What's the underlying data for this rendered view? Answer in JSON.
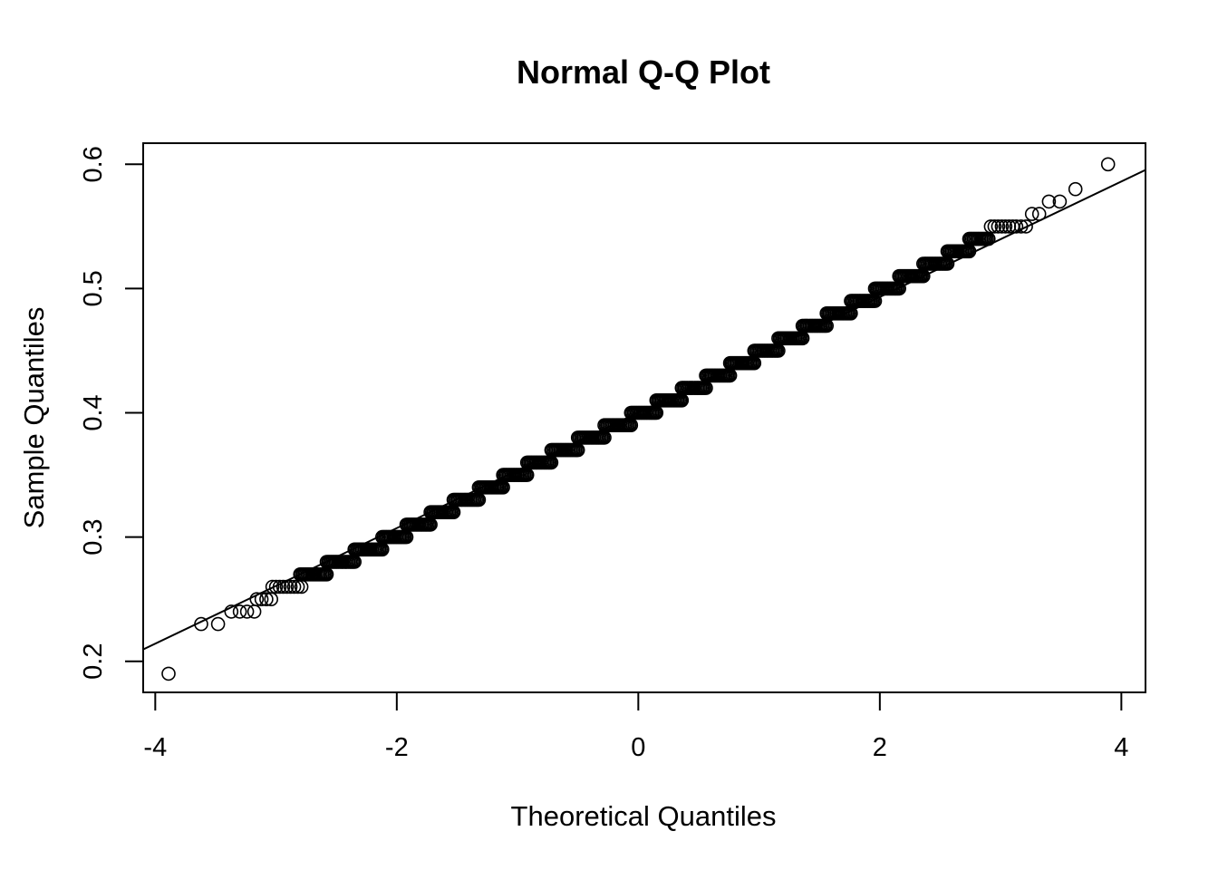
{
  "chart_data": {
    "type": "scatter",
    "title": "Normal Q-Q Plot",
    "xlabel": "Theoretical Quantiles",
    "ylabel": "Sample Quantiles",
    "xlim": [
      -4.1,
      4.2
    ],
    "ylim": [
      0.175,
      0.617
    ],
    "x_ticks": [
      -4,
      -2,
      0,
      2,
      4
    ],
    "x_tick_labels": [
      "-4",
      "-2",
      "0",
      "2",
      "4"
    ],
    "y_ticks": [
      0.2,
      0.3,
      0.4,
      0.5,
      0.6
    ],
    "y_tick_labels": [
      "0.2",
      "0.3",
      "0.4",
      "0.5",
      "0.6"
    ],
    "grid": false,
    "legend": "none",
    "marker": "open-circle",
    "reference_line": {
      "intercept": 0.4002,
      "slope": 0.0465
    },
    "low_tail_points": [
      [
        -3.89,
        0.19
      ],
      [
        -3.62,
        0.23
      ],
      [
        -3.48,
        0.23
      ],
      [
        -3.37,
        0.24
      ],
      [
        -3.3,
        0.24
      ],
      [
        -3.24,
        0.24
      ],
      [
        -3.18,
        0.24
      ],
      [
        -3.16,
        0.25
      ],
      [
        -3.12,
        0.25
      ],
      [
        -3.08,
        0.25
      ],
      [
        -3.04,
        0.25
      ],
      [
        -3.03,
        0.26
      ],
      [
        -3.0,
        0.26
      ],
      [
        -2.97,
        0.26
      ],
      [
        -2.94,
        0.26
      ],
      [
        -2.91,
        0.26
      ],
      [
        -2.88,
        0.26
      ],
      [
        -2.85,
        0.26
      ],
      [
        -2.82,
        0.26
      ],
      [
        -2.79,
        0.26
      ]
    ],
    "steps": [
      {
        "value": 0.27,
        "x_start": -2.8,
        "x_end": -2.58
      },
      {
        "value": 0.28,
        "x_start": -2.58,
        "x_end": -2.35
      },
      {
        "value": 0.29,
        "x_start": -2.35,
        "x_end": -2.12
      },
      {
        "value": 0.3,
        "x_start": -2.12,
        "x_end": -1.92
      },
      {
        "value": 0.31,
        "x_start": -1.92,
        "x_end": -1.72
      },
      {
        "value": 0.32,
        "x_start": -1.72,
        "x_end": -1.53
      },
      {
        "value": 0.33,
        "x_start": -1.53,
        "x_end": -1.32
      },
      {
        "value": 0.34,
        "x_start": -1.32,
        "x_end": -1.12
      },
      {
        "value": 0.35,
        "x_start": -1.12,
        "x_end": -0.92
      },
      {
        "value": 0.36,
        "x_start": -0.92,
        "x_end": -0.72
      },
      {
        "value": 0.37,
        "x_start": -0.72,
        "x_end": -0.5
      },
      {
        "value": 0.38,
        "x_start": -0.5,
        "x_end": -0.28
      },
      {
        "value": 0.39,
        "x_start": -0.28,
        "x_end": -0.06
      },
      {
        "value": 0.4,
        "x_start": -0.06,
        "x_end": 0.15
      },
      {
        "value": 0.41,
        "x_start": 0.15,
        "x_end": 0.36
      },
      {
        "value": 0.42,
        "x_start": 0.36,
        "x_end": 0.56
      },
      {
        "value": 0.43,
        "x_start": 0.56,
        "x_end": 0.76
      },
      {
        "value": 0.44,
        "x_start": 0.76,
        "x_end": 0.96
      },
      {
        "value": 0.45,
        "x_start": 0.96,
        "x_end": 1.16
      },
      {
        "value": 0.46,
        "x_start": 1.16,
        "x_end": 1.36
      },
      {
        "value": 0.47,
        "x_start": 1.36,
        "x_end": 1.56
      },
      {
        "value": 0.48,
        "x_start": 1.56,
        "x_end": 1.76
      },
      {
        "value": 0.49,
        "x_start": 1.76,
        "x_end": 1.96
      },
      {
        "value": 0.5,
        "x_start": 1.96,
        "x_end": 2.16
      },
      {
        "value": 0.51,
        "x_start": 2.16,
        "x_end": 2.36
      },
      {
        "value": 0.52,
        "x_start": 2.36,
        "x_end": 2.56
      },
      {
        "value": 0.53,
        "x_start": 2.56,
        "x_end": 2.74
      },
      {
        "value": 0.54,
        "x_start": 2.74,
        "x_end": 2.9
      }
    ],
    "high_tail_points": [
      [
        2.92,
        0.55
      ],
      [
        2.95,
        0.55
      ],
      [
        2.98,
        0.55
      ],
      [
        3.01,
        0.55
      ],
      [
        3.04,
        0.55
      ],
      [
        3.07,
        0.55
      ],
      [
        3.1,
        0.55
      ],
      [
        3.13,
        0.55
      ],
      [
        3.17,
        0.55
      ],
      [
        3.21,
        0.55
      ],
      [
        3.26,
        0.56
      ],
      [
        3.32,
        0.56
      ],
      [
        3.4,
        0.57
      ],
      [
        3.49,
        0.57
      ],
      [
        3.62,
        0.58
      ],
      [
        3.89,
        0.6
      ]
    ]
  }
}
